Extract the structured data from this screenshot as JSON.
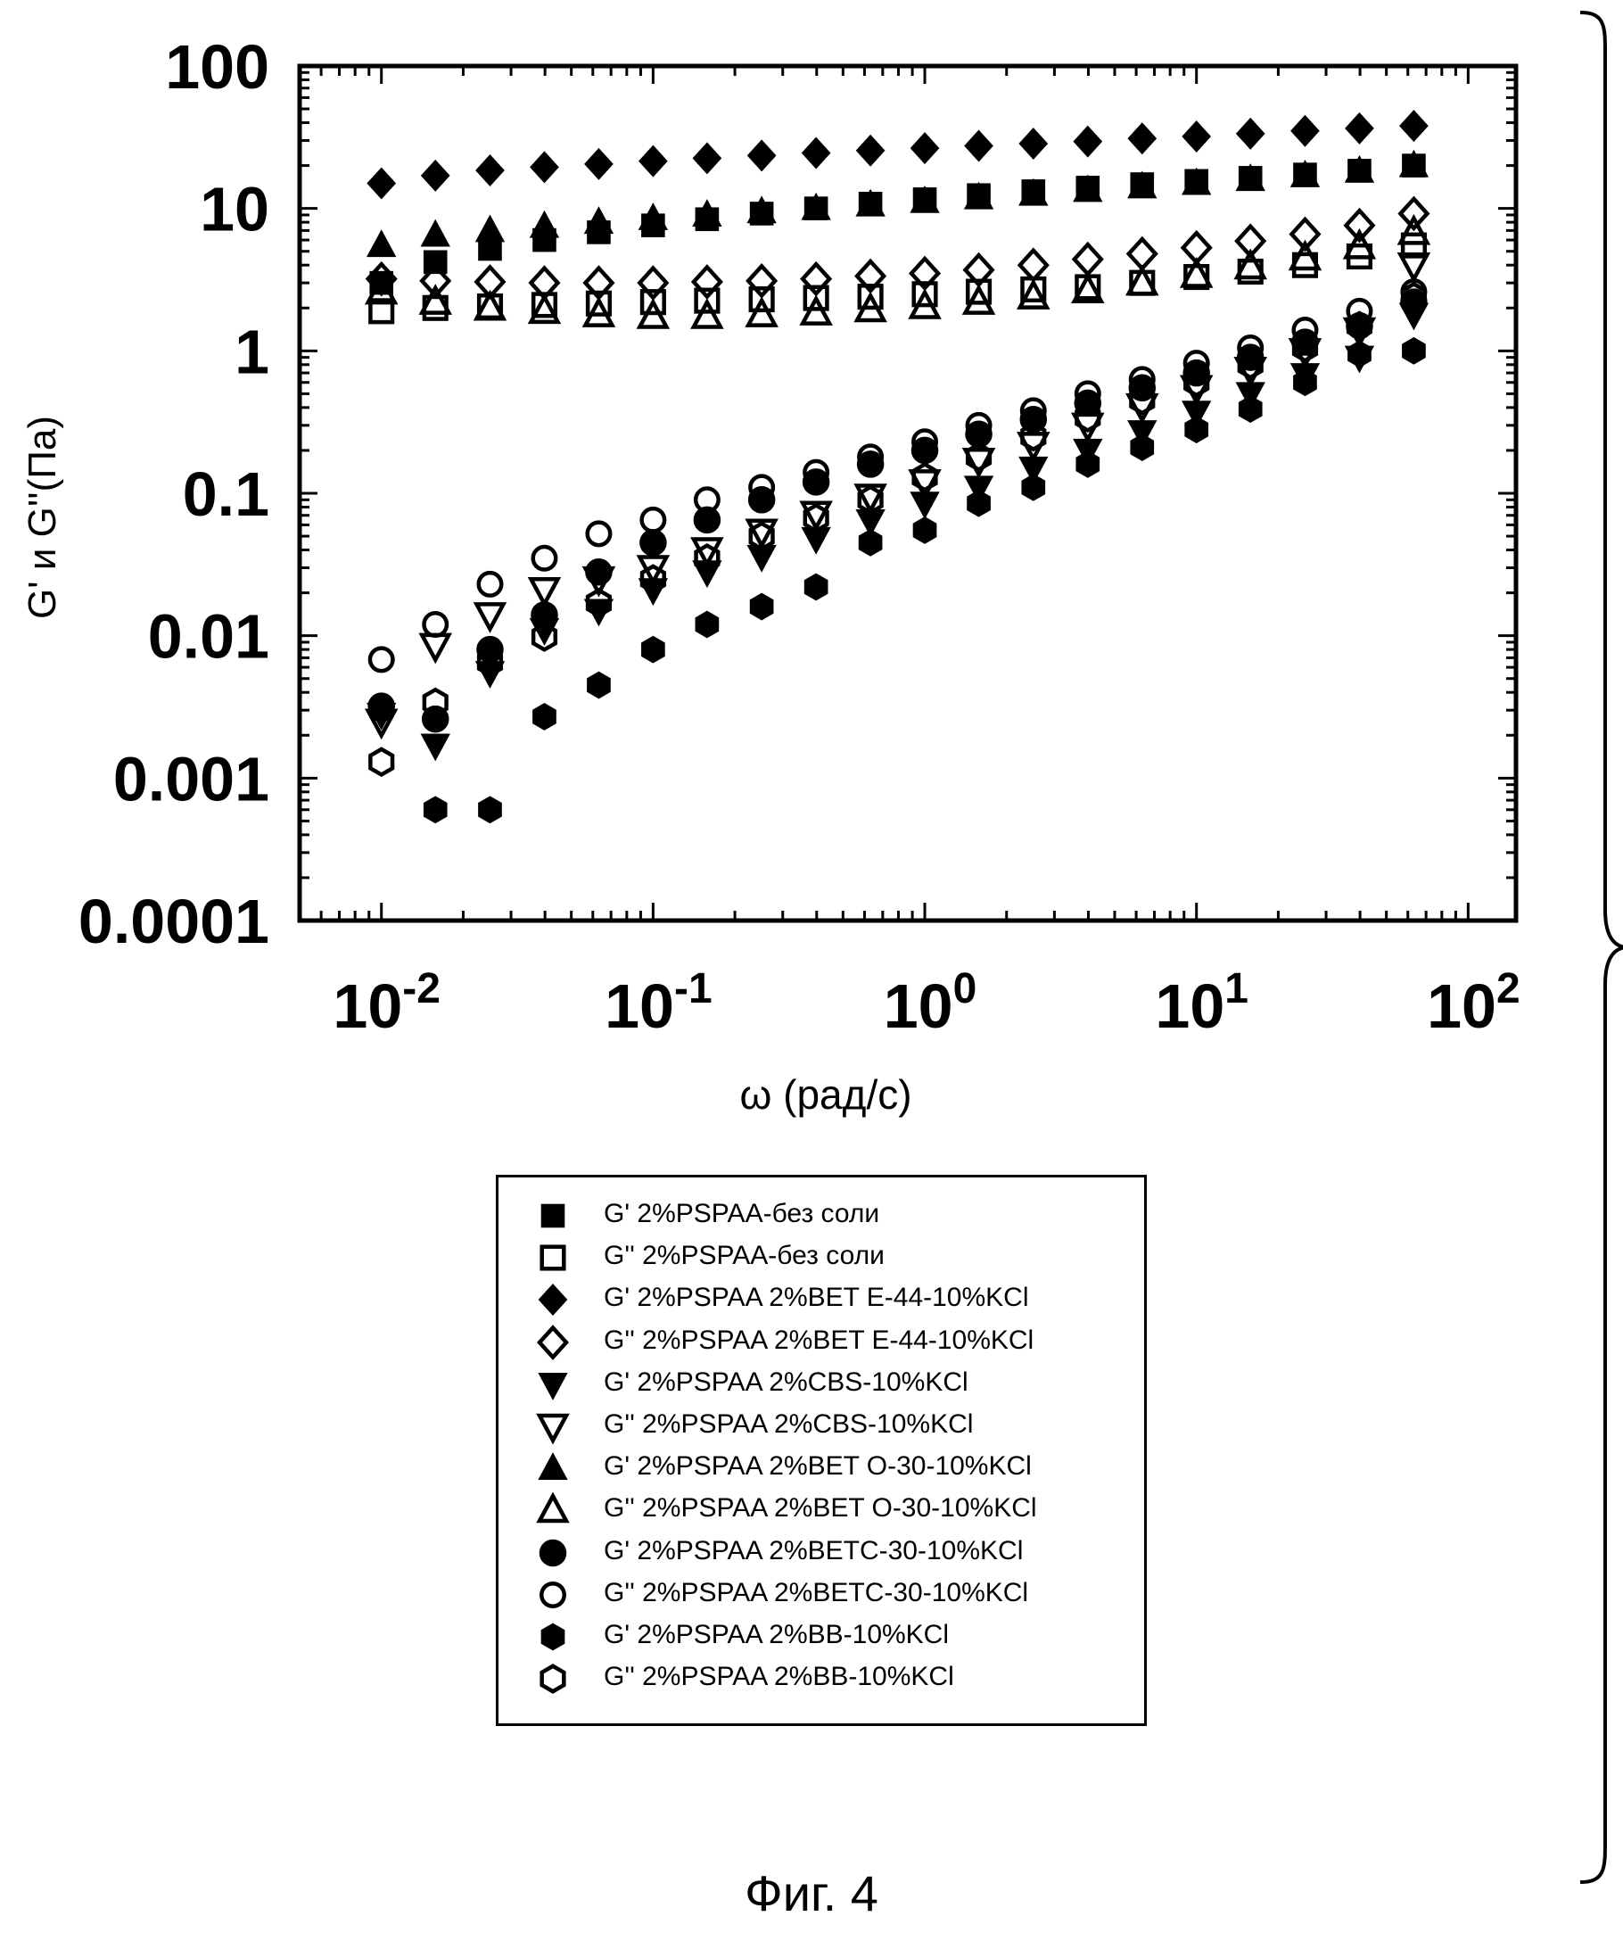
{
  "chart_data": {
    "type": "scatter",
    "x_scale": "log",
    "y_scale": "log",
    "xlabel": "ω (рад/с)",
    "ylabel": "G' и G''(Па)",
    "xlim": [
      0.005,
      150
    ],
    "ylim": [
      0.0001,
      100
    ],
    "y_tick_labels": [
      "100",
      "10",
      "1",
      "0.1",
      "0.01",
      "0.001",
      "0.0001"
    ],
    "x_tick_labels": [
      {
        "base": "10",
        "exp": "-2"
      },
      {
        "base": "10",
        "exp": "-1"
      },
      {
        "base": "10",
        "exp": "0"
      },
      {
        "base": "10",
        "exp": "1"
      },
      {
        "base": "10",
        "exp": "2"
      }
    ],
    "grid": false,
    "legend_position": "below",
    "x": [
      0.01,
      0.0158,
      0.0251,
      0.0398,
      0.0631,
      0.1,
      0.158,
      0.251,
      0.398,
      0.631,
      1.0,
      1.58,
      2.51,
      3.98,
      6.31,
      10.0,
      15.8,
      25.1,
      39.8,
      63.1
    ],
    "series": [
      {
        "name": "G' 2%PSPAA-без соли",
        "marker": "square",
        "filled": true,
        "values": [
          3.0,
          4.2,
          5.2,
          6.0,
          6.8,
          7.6,
          8.4,
          9.2,
          10.0,
          10.8,
          11.6,
          12.4,
          13.2,
          14.0,
          14.8,
          15.6,
          16.4,
          17.3,
          18.4,
          20.0
        ]
      },
      {
        "name": "G'' 2%PSPAA-без соли",
        "marker": "square",
        "filled": false,
        "values": [
          1.9,
          2.0,
          2.05,
          2.1,
          2.15,
          2.2,
          2.25,
          2.3,
          2.35,
          2.4,
          2.5,
          2.6,
          2.7,
          2.8,
          3.0,
          3.3,
          3.6,
          4.0,
          4.6,
          5.5
        ]
      },
      {
        "name": "G' 2%PSPAA 2%BET E-44-10%KCl",
        "marker": "diamond",
        "filled": true,
        "values": [
          15,
          17,
          18.5,
          19.5,
          20.5,
          21.5,
          22.5,
          23.5,
          24.5,
          25.5,
          26.5,
          27.5,
          28.5,
          29.5,
          31,
          32,
          33.5,
          35,
          36.5,
          38
        ]
      },
      {
        "name": "G'' 2%PSPAA 2%BET E-44-10%KCl",
        "marker": "diamond",
        "filled": false,
        "values": [
          3.2,
          3.1,
          3.05,
          3.0,
          3.0,
          3.0,
          3.05,
          3.1,
          3.2,
          3.35,
          3.5,
          3.7,
          4.0,
          4.4,
          4.8,
          5.3,
          5.9,
          6.6,
          7.6,
          9.2
        ]
      },
      {
        "name": "G' 2%PSPAA 2%CBS-10%KCl",
        "marker": "triangle-down",
        "filled": true,
        "values": [
          0.0028,
          0.0017,
          0.0055,
          0.011,
          0.015,
          0.021,
          0.028,
          0.036,
          0.048,
          0.064,
          0.085,
          0.11,
          0.15,
          0.2,
          0.27,
          0.37,
          0.5,
          0.68,
          0.9,
          1.8
        ]
      },
      {
        "name": "G'' 2%PSPAA 2%CBS-10%KCl",
        "marker": "triangle-down",
        "filled": false,
        "values": [
          0.0025,
          0.0085,
          0.014,
          0.021,
          0.025,
          0.03,
          0.04,
          0.054,
          0.072,
          0.095,
          0.12,
          0.17,
          0.22,
          0.3,
          0.41,
          0.55,
          0.74,
          1.0,
          1.4,
          4.0
        ]
      },
      {
        "name": "G' 2%PSPAA 2%BET O-30-10%KCl",
        "marker": "triangle-up",
        "filled": true,
        "values": [
          5.5,
          6.5,
          7.0,
          7.5,
          8.0,
          8.5,
          9.0,
          9.5,
          10.0,
          10.6,
          11.2,
          11.9,
          12.6,
          13.4,
          14.2,
          15.0,
          16.0,
          17.0,
          18.3,
          20.0
        ]
      },
      {
        "name": "G'' 2%PSPAA 2%BET O-30-10%KCl",
        "marker": "triangle-up",
        "filled": false,
        "values": [
          2.6,
          2.2,
          2.0,
          1.9,
          1.8,
          1.75,
          1.75,
          1.8,
          1.85,
          1.95,
          2.05,
          2.2,
          2.4,
          2.65,
          3.0,
          3.4,
          3.9,
          4.5,
          5.4,
          6.8
        ]
      },
      {
        "name": "G' 2%PSPAA 2%BETC-30-10%KCl",
        "marker": "circle",
        "filled": true,
        "values": [
          0.0032,
          0.0026,
          0.008,
          0.014,
          0.028,
          0.045,
          0.065,
          0.09,
          0.12,
          0.16,
          0.2,
          0.26,
          0.33,
          0.43,
          0.55,
          0.7,
          0.9,
          1.15,
          1.5,
          2.2
        ]
      },
      {
        "name": "G'' 2%PSPAA 2%BETC-30-10%KCl",
        "marker": "circle",
        "filled": false,
        "values": [
          0.0068,
          0.012,
          0.023,
          0.035,
          0.052,
          0.065,
          0.09,
          0.11,
          0.14,
          0.18,
          0.23,
          0.3,
          0.38,
          0.5,
          0.63,
          0.82,
          1.05,
          1.4,
          1.9,
          2.6
        ]
      },
      {
        "name": "G' 2%PSPAA 2%BB-10%KCl",
        "marker": "hexagon",
        "filled": true,
        "values": [
          0.003,
          0.0006,
          0.0006,
          0.0027,
          0.0045,
          0.008,
          0.012,
          0.016,
          0.022,
          0.045,
          0.055,
          0.085,
          0.11,
          0.16,
          0.21,
          0.28,
          0.39,
          0.6,
          0.95,
          1.0
        ]
      },
      {
        "name": "G'' 2%PSPAA 2%BB-10%KCl",
        "marker": "hexagon",
        "filled": false,
        "values": [
          0.0013,
          0.0034,
          0.0065,
          0.0098,
          0.017,
          0.025,
          0.035,
          0.05,
          0.067,
          0.09,
          0.13,
          0.18,
          0.25,
          0.34,
          0.45,
          0.6,
          0.8,
          1.05,
          1.5,
          2.4
        ]
      }
    ]
  },
  "caption": "Фиг. 4"
}
